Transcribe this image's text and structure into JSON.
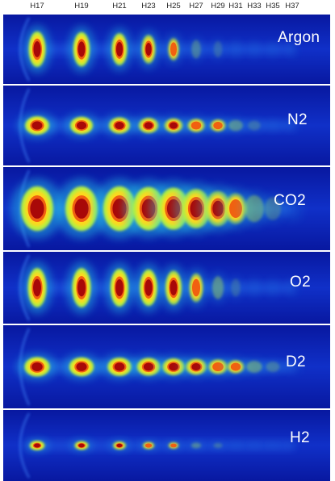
{
  "harmonics": [
    "H17",
    "H19",
    "H21",
    "H23",
    "H25",
    "H27",
    "H29",
    "H31",
    "H33",
    "H35",
    "H37"
  ],
  "panels": [
    {
      "label": "Argon",
      "spots": [
        1.0,
        0.95,
        0.85,
        0.7,
        0.45,
        0.25,
        0.15,
        0.1,
        0.06,
        0.04,
        0.03
      ]
    },
    {
      "label": "N2",
      "spots": [
        1.0,
        0.9,
        0.8,
        0.72,
        0.62,
        0.55,
        0.45,
        0.32,
        0.18,
        0.1,
        0.06
      ]
    },
    {
      "label": "CO2",
      "spots": [
        1.0,
        1.0,
        1.0,
        0.95,
        0.9,
        0.8,
        0.65,
        0.5,
        0.35,
        0.2,
        0.1
      ]
    },
    {
      "label": "O2",
      "spots": [
        1.0,
        1.0,
        0.95,
        0.9,
        0.8,
        0.6,
        0.35,
        0.15,
        0.08,
        0.05,
        0.03
      ]
    },
    {
      "label": "D2",
      "spots": [
        1.0,
        0.95,
        0.9,
        0.85,
        0.78,
        0.7,
        0.6,
        0.48,
        0.35,
        0.22,
        0.12
      ]
    },
    {
      "label": "H2",
      "spots": [
        0.9,
        0.78,
        0.68,
        0.55,
        0.42,
        0.3,
        0.2,
        0.12,
        0.07,
        0.04,
        0.02
      ]
    }
  ]
}
